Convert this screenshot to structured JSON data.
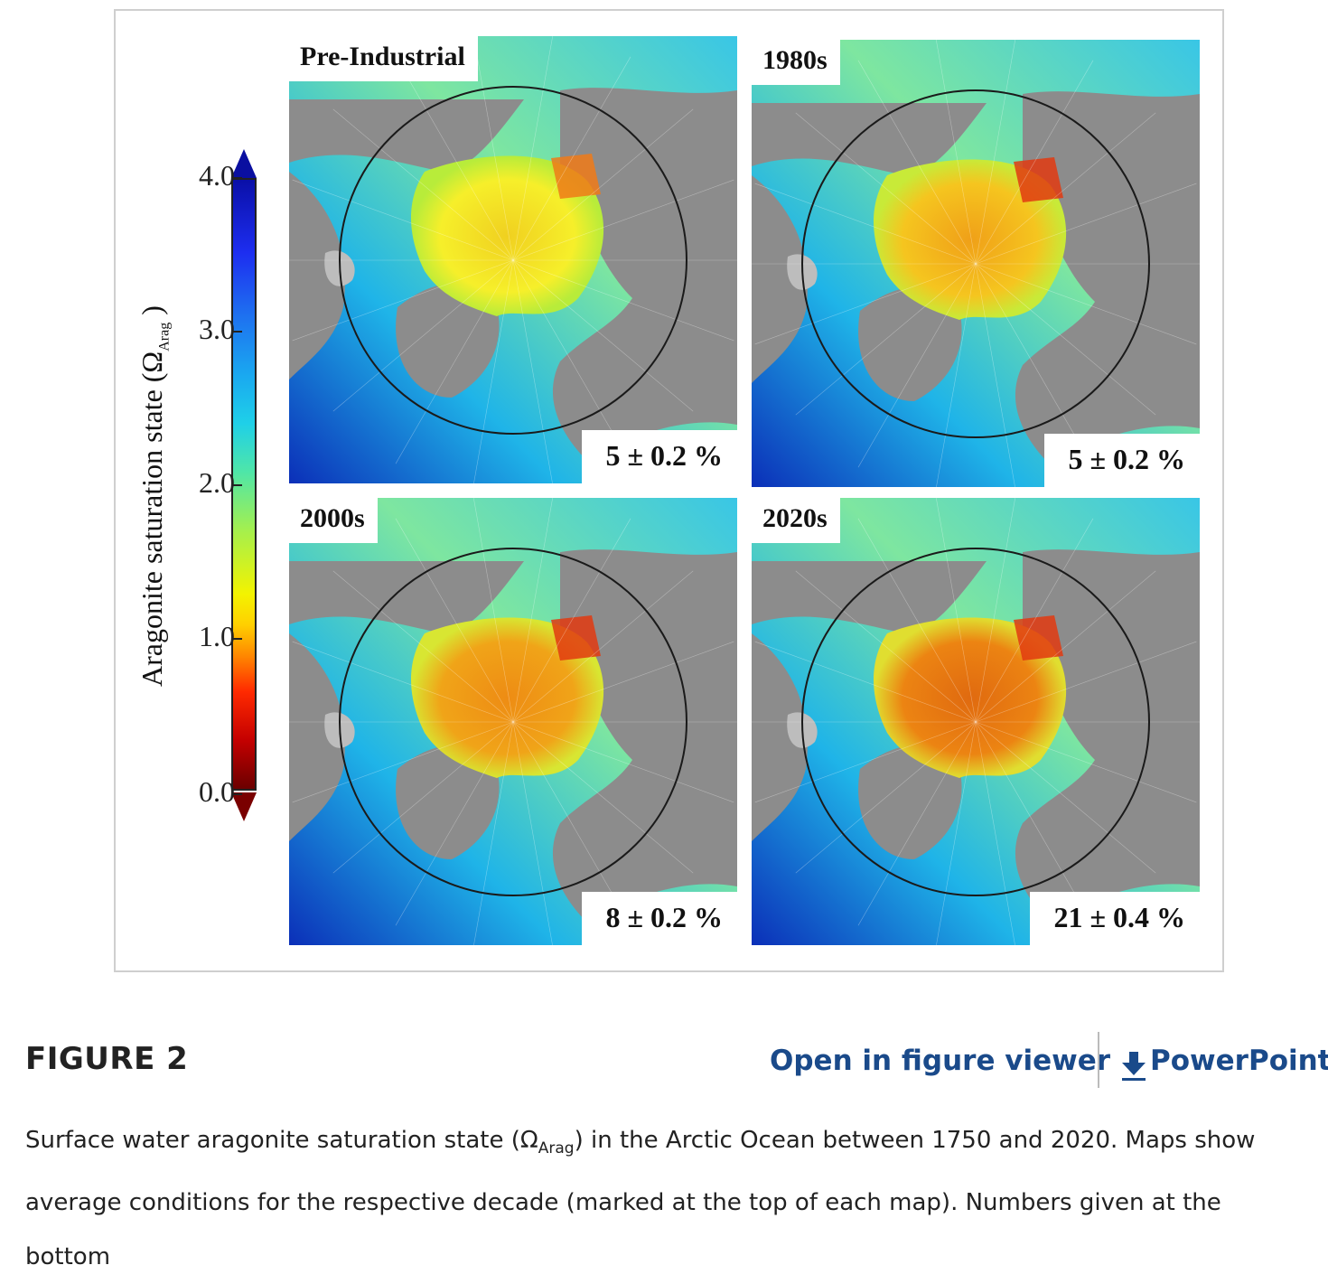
{
  "colorbar": {
    "label_main": "Aragonite saturation state (Ω",
    "label_sub": "Arag",
    "label_close": " )",
    "ticks": [
      "4.0",
      "3.0",
      "2.0",
      "1.0",
      "0.0"
    ]
  },
  "panels": [
    {
      "title": "Pre-Industrial",
      "stat": "5 ± 0.2 %"
    },
    {
      "title": "1980s",
      "stat": "5 ± 0.2 %"
    },
    {
      "title": "2000s",
      "stat": "8 ± 0.2 %"
    },
    {
      "title": "2020s",
      "stat": "21 ± 0.4 %"
    }
  ],
  "figure": {
    "label": "FIGURE 2",
    "open_viewer": "Open in figure viewer",
    "powerpoint": "PowerPoint",
    "caption_pre": "Surface water aragonite saturation state (Ω",
    "caption_sub": "Arag",
    "caption_post": ") in the Arctic Ocean between 1750 and 2020. Maps show average conditions for the respective decade (marked at the top of each map). Numbers given at the bottom"
  },
  "colors": {
    "land": "#8a8a8a",
    "link": "#1a4a8a"
  }
}
